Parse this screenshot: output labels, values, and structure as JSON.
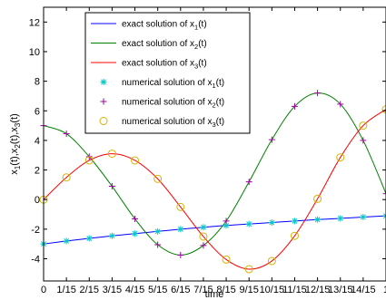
{
  "chart_data": {
    "type": "line",
    "title": "",
    "xlabel": "time",
    "ylabel": "x_1(t),x_2(t),x_3(t)",
    "xlim": [
      0,
      1
    ],
    "ylim": [
      -5.5,
      13
    ],
    "x_tick_labels": [
      "0",
      "1/15",
      "2/15",
      "3/15",
      "4/15",
      "5/15",
      "6/15",
      "7/15",
      "8/15",
      "9/15",
      "10/15",
      "11/15",
      "12/15",
      "13/15",
      "14/15",
      "1"
    ],
    "y_ticks": [
      -4,
      -2,
      0,
      2,
      4,
      6,
      8,
      10,
      12
    ],
    "grid": false,
    "legend_position": "top-center",
    "x": [
      0,
      0.0667,
      0.1333,
      0.2,
      0.2667,
      0.3333,
      0.4,
      0.4667,
      0.5333,
      0.6,
      0.6667,
      0.7333,
      0.8,
      0.8667,
      0.9333,
      1
    ],
    "series": [
      {
        "name": "exact solution of x_1(t)",
        "style": "line",
        "color": "#0000ff",
        "values": [
          -3.0,
          -2.8,
          -2.62,
          -2.45,
          -2.3,
          -2.15,
          -2.0,
          -1.87,
          -1.75,
          -1.65,
          -1.55,
          -1.45,
          -1.35,
          -1.27,
          -1.18,
          -1.1
        ]
      },
      {
        "name": "exact solution of x_2(t)",
        "style": "line",
        "color": "#008000",
        "values": [
          5.0,
          4.45,
          2.9,
          0.9,
          -1.3,
          -3.05,
          -3.75,
          -3.1,
          -1.45,
          1.2,
          4.05,
          6.3,
          7.2,
          6.45,
          4.0,
          0.4
        ]
      },
      {
        "name": "exact solution of x_3(t)",
        "style": "line",
        "color": "#ff0000",
        "values": [
          0.0,
          1.5,
          2.65,
          3.1,
          2.65,
          1.4,
          -0.5,
          -2.5,
          -4.05,
          -4.7,
          -4.15,
          -2.45,
          0.05,
          2.85,
          5.0,
          6.1
        ]
      },
      {
        "name": "numerical solution of x_1(t)",
        "style": "marker",
        "marker": "star",
        "color": "#00c8c8",
        "values": [
          -3.0,
          -2.8,
          -2.62,
          -2.45,
          -2.3,
          -2.15,
          -2.0,
          -1.87,
          -1.75,
          -1.65,
          -1.55,
          -1.45,
          -1.35,
          -1.27,
          -1.18,
          -1.1
        ]
      },
      {
        "name": "numerical solution of x_2(t)",
        "style": "marker",
        "marker": "plus",
        "color": "#a000a0",
        "values": [
          5.0,
          4.45,
          2.9,
          0.9,
          -1.3,
          -3.05,
          -3.75,
          -3.1,
          -1.45,
          1.2,
          4.05,
          6.3,
          7.2,
          6.45,
          4.0,
          0.4
        ]
      },
      {
        "name": "numerical solution of x_3(t)",
        "style": "marker",
        "marker": "circle",
        "color": "#d4b400",
        "values": [
          0.0,
          1.5,
          2.65,
          3.1,
          2.65,
          1.4,
          -0.5,
          -2.5,
          -4.05,
          -4.7,
          -4.15,
          -2.45,
          0.05,
          2.85,
          5.0,
          6.1
        ]
      }
    ]
  }
}
